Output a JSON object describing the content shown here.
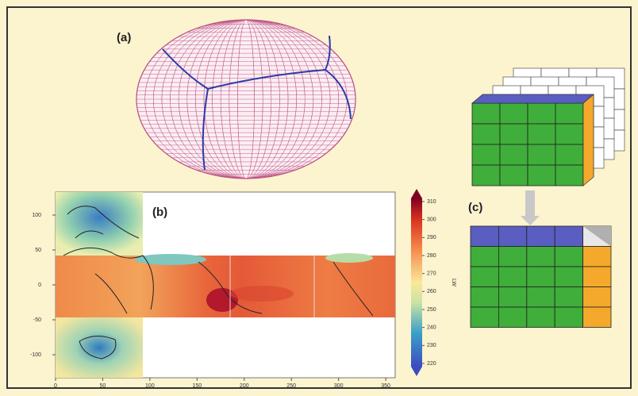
{
  "panels": {
    "a": {
      "label": "(a)"
    },
    "b": {
      "label": "(b)",
      "yticks": [
        100,
        50,
        0,
        -50,
        -100
      ],
      "xticks": [
        0,
        50,
        100,
        150,
        200,
        250,
        300,
        350
      ],
      "colorbar": {
        "ticks": [
          310,
          300,
          290,
          280,
          270,
          260,
          250,
          240,
          230,
          220
        ],
        "label": "LW"
      }
    },
    "c": {
      "label": "(c)"
    }
  }
}
